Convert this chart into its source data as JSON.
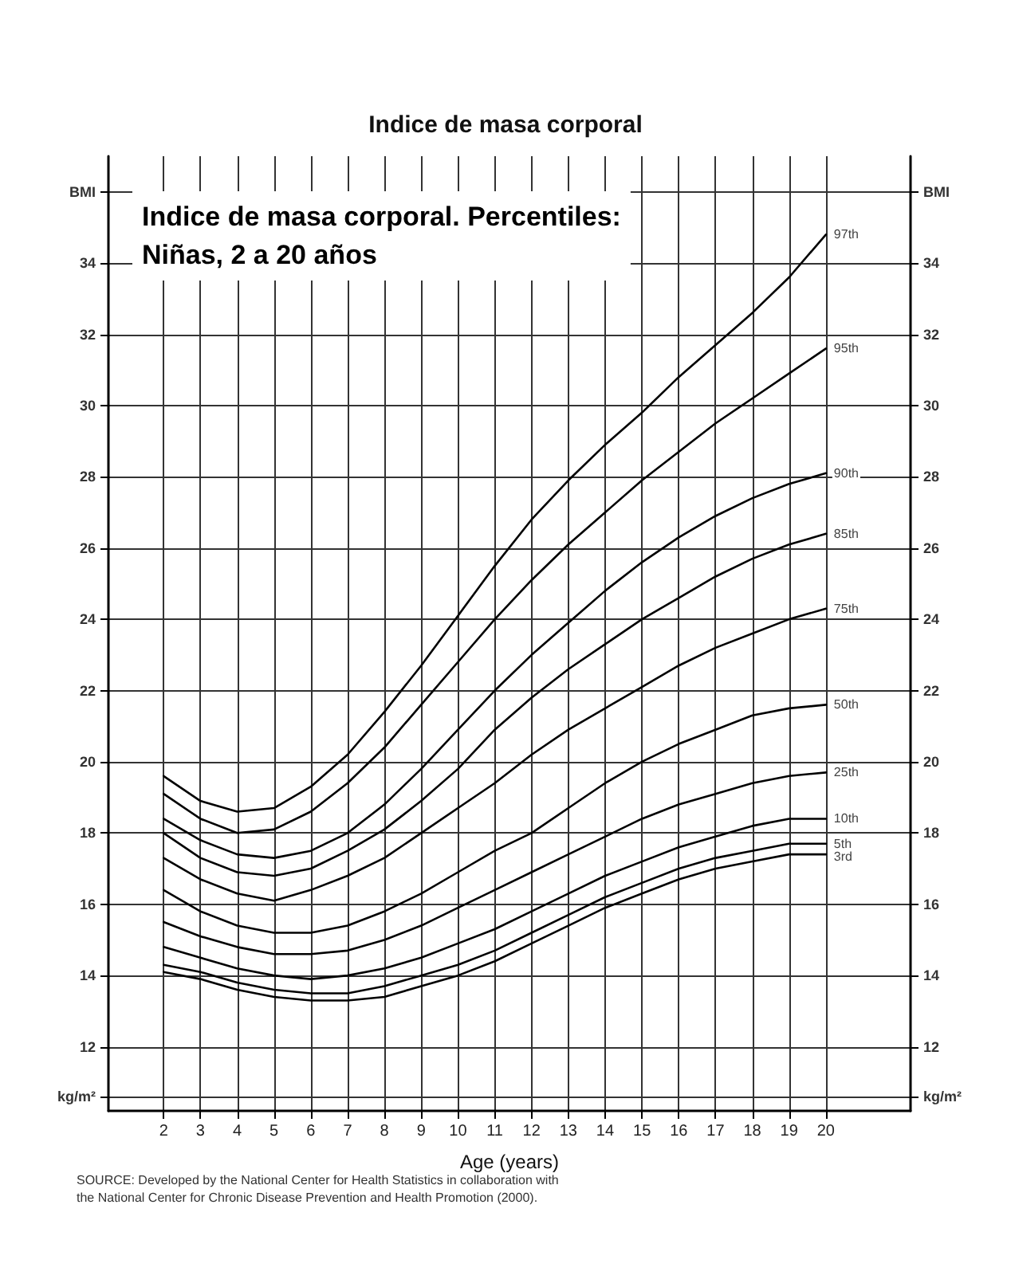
{
  "chart_data": {
    "type": "line",
    "title": "Indice de masa corporal",
    "subtitle": "Indice de masa corporal. Percentiles:\nNiñas, 2 a 20 años",
    "xlabel": "Age (years)",
    "annotations": [
      "SOURCE: Developed by the National Center for Health Statistics in collaboration with\nthe National Center for Chronic Disease Prevention and Health Promotion (2000)."
    ],
    "x": [
      2,
      3,
      4,
      5,
      6,
      7,
      8,
      9,
      10,
      11,
      12,
      13,
      14,
      15,
      16,
      17,
      18,
      19,
      20
    ],
    "series": [
      {
        "name": "97th",
        "color": "#000000",
        "values": [
          19.6,
          18.9,
          18.6,
          18.7,
          19.3,
          20.2,
          21.4,
          22.7,
          24.1,
          25.5,
          26.8,
          27.9,
          28.9,
          29.8,
          30.8,
          31.7,
          32.6,
          33.6,
          34.8
        ]
      },
      {
        "name": "95th",
        "color": "#000000",
        "values": [
          19.1,
          18.4,
          18.0,
          18.1,
          18.6,
          19.4,
          20.4,
          21.6,
          22.8,
          24.0,
          25.1,
          26.1,
          27.0,
          27.9,
          28.7,
          29.5,
          30.2,
          30.9,
          31.6
        ]
      },
      {
        "name": "90th",
        "color": "#000000",
        "values": [
          18.4,
          17.8,
          17.4,
          17.3,
          17.5,
          18.0,
          18.8,
          19.8,
          20.9,
          22.0,
          23.0,
          23.9,
          24.8,
          25.6,
          26.3,
          26.9,
          27.4,
          27.8,
          28.1
        ]
      },
      {
        "name": "85th",
        "color": "#000000",
        "values": [
          18.0,
          17.3,
          16.9,
          16.8,
          17.0,
          17.5,
          18.1,
          18.9,
          19.8,
          20.9,
          21.8,
          22.6,
          23.3,
          24.0,
          24.6,
          25.2,
          25.7,
          26.1,
          26.4
        ]
      },
      {
        "name": "75th",
        "color": "#000000",
        "values": [
          17.3,
          16.7,
          16.3,
          16.1,
          16.4,
          16.8,
          17.3,
          18.0,
          18.7,
          19.4,
          20.2,
          20.9,
          21.5,
          22.1,
          22.7,
          23.2,
          23.6,
          24.0,
          24.3
        ]
      },
      {
        "name": "50th",
        "color": "#000000",
        "values": [
          16.4,
          15.8,
          15.4,
          15.2,
          15.2,
          15.4,
          15.8,
          16.3,
          16.9,
          17.5,
          18.0,
          18.7,
          19.4,
          20.0,
          20.5,
          20.9,
          21.3,
          21.5,
          21.6
        ]
      },
      {
        "name": "25th",
        "color": "#000000",
        "values": [
          15.5,
          15.1,
          14.8,
          14.6,
          14.6,
          14.7,
          15.0,
          15.4,
          15.9,
          16.4,
          16.9,
          17.4,
          17.9,
          18.4,
          18.8,
          19.1,
          19.4,
          19.6,
          19.7
        ]
      },
      {
        "name": "10th",
        "color": "#000000",
        "values": [
          14.8,
          14.5,
          14.2,
          14.0,
          13.9,
          14.0,
          14.2,
          14.5,
          14.9,
          15.3,
          15.8,
          16.3,
          16.8,
          17.2,
          17.6,
          17.9,
          18.2,
          18.4,
          18.4
        ]
      },
      {
        "name": "5th",
        "color": "#000000",
        "values": [
          14.3,
          14.1,
          13.8,
          13.6,
          13.5,
          13.5,
          13.7,
          14.0,
          14.3,
          14.7,
          15.2,
          15.7,
          16.2,
          16.6,
          17.0,
          17.3,
          17.5,
          17.7,
          17.7
        ]
      },
      {
        "name": "3rd",
        "color": "#000000",
        "values": [
          14.1,
          13.9,
          13.6,
          13.4,
          13.3,
          13.3,
          13.4,
          13.7,
          14.0,
          14.4,
          14.9,
          15.4,
          15.9,
          16.3,
          16.7,
          17.0,
          17.2,
          17.4,
          17.4
        ]
      }
    ],
    "xlim": [
      0.5,
      22.3
    ],
    "xticks": [
      2,
      3,
      4,
      5,
      6,
      7,
      8,
      9,
      10,
      11,
      12,
      13,
      14,
      15,
      16,
      17,
      18,
      19,
      20
    ],
    "ylim": [
      10.2,
      37
    ],
    "yticks": [
      {
        "value": 10.6,
        "label": "kg/m²"
      },
      12,
      14,
      16,
      18,
      20,
      22,
      24,
      26,
      28,
      30,
      32,
      34,
      {
        "value": 36,
        "label": "BMI"
      }
    ],
    "y2lim": [
      10.2,
      37
    ],
    "y2ticks": [
      {
        "value": 10.6,
        "label": "kg/m²"
      },
      12,
      14,
      16,
      18,
      20,
      22,
      24,
      26,
      28,
      30,
      32,
      34,
      {
        "value": 36,
        "label": "BMI"
      }
    ],
    "grid": true,
    "legend": false,
    "marker": "none",
    "line_style": "solid"
  }
}
